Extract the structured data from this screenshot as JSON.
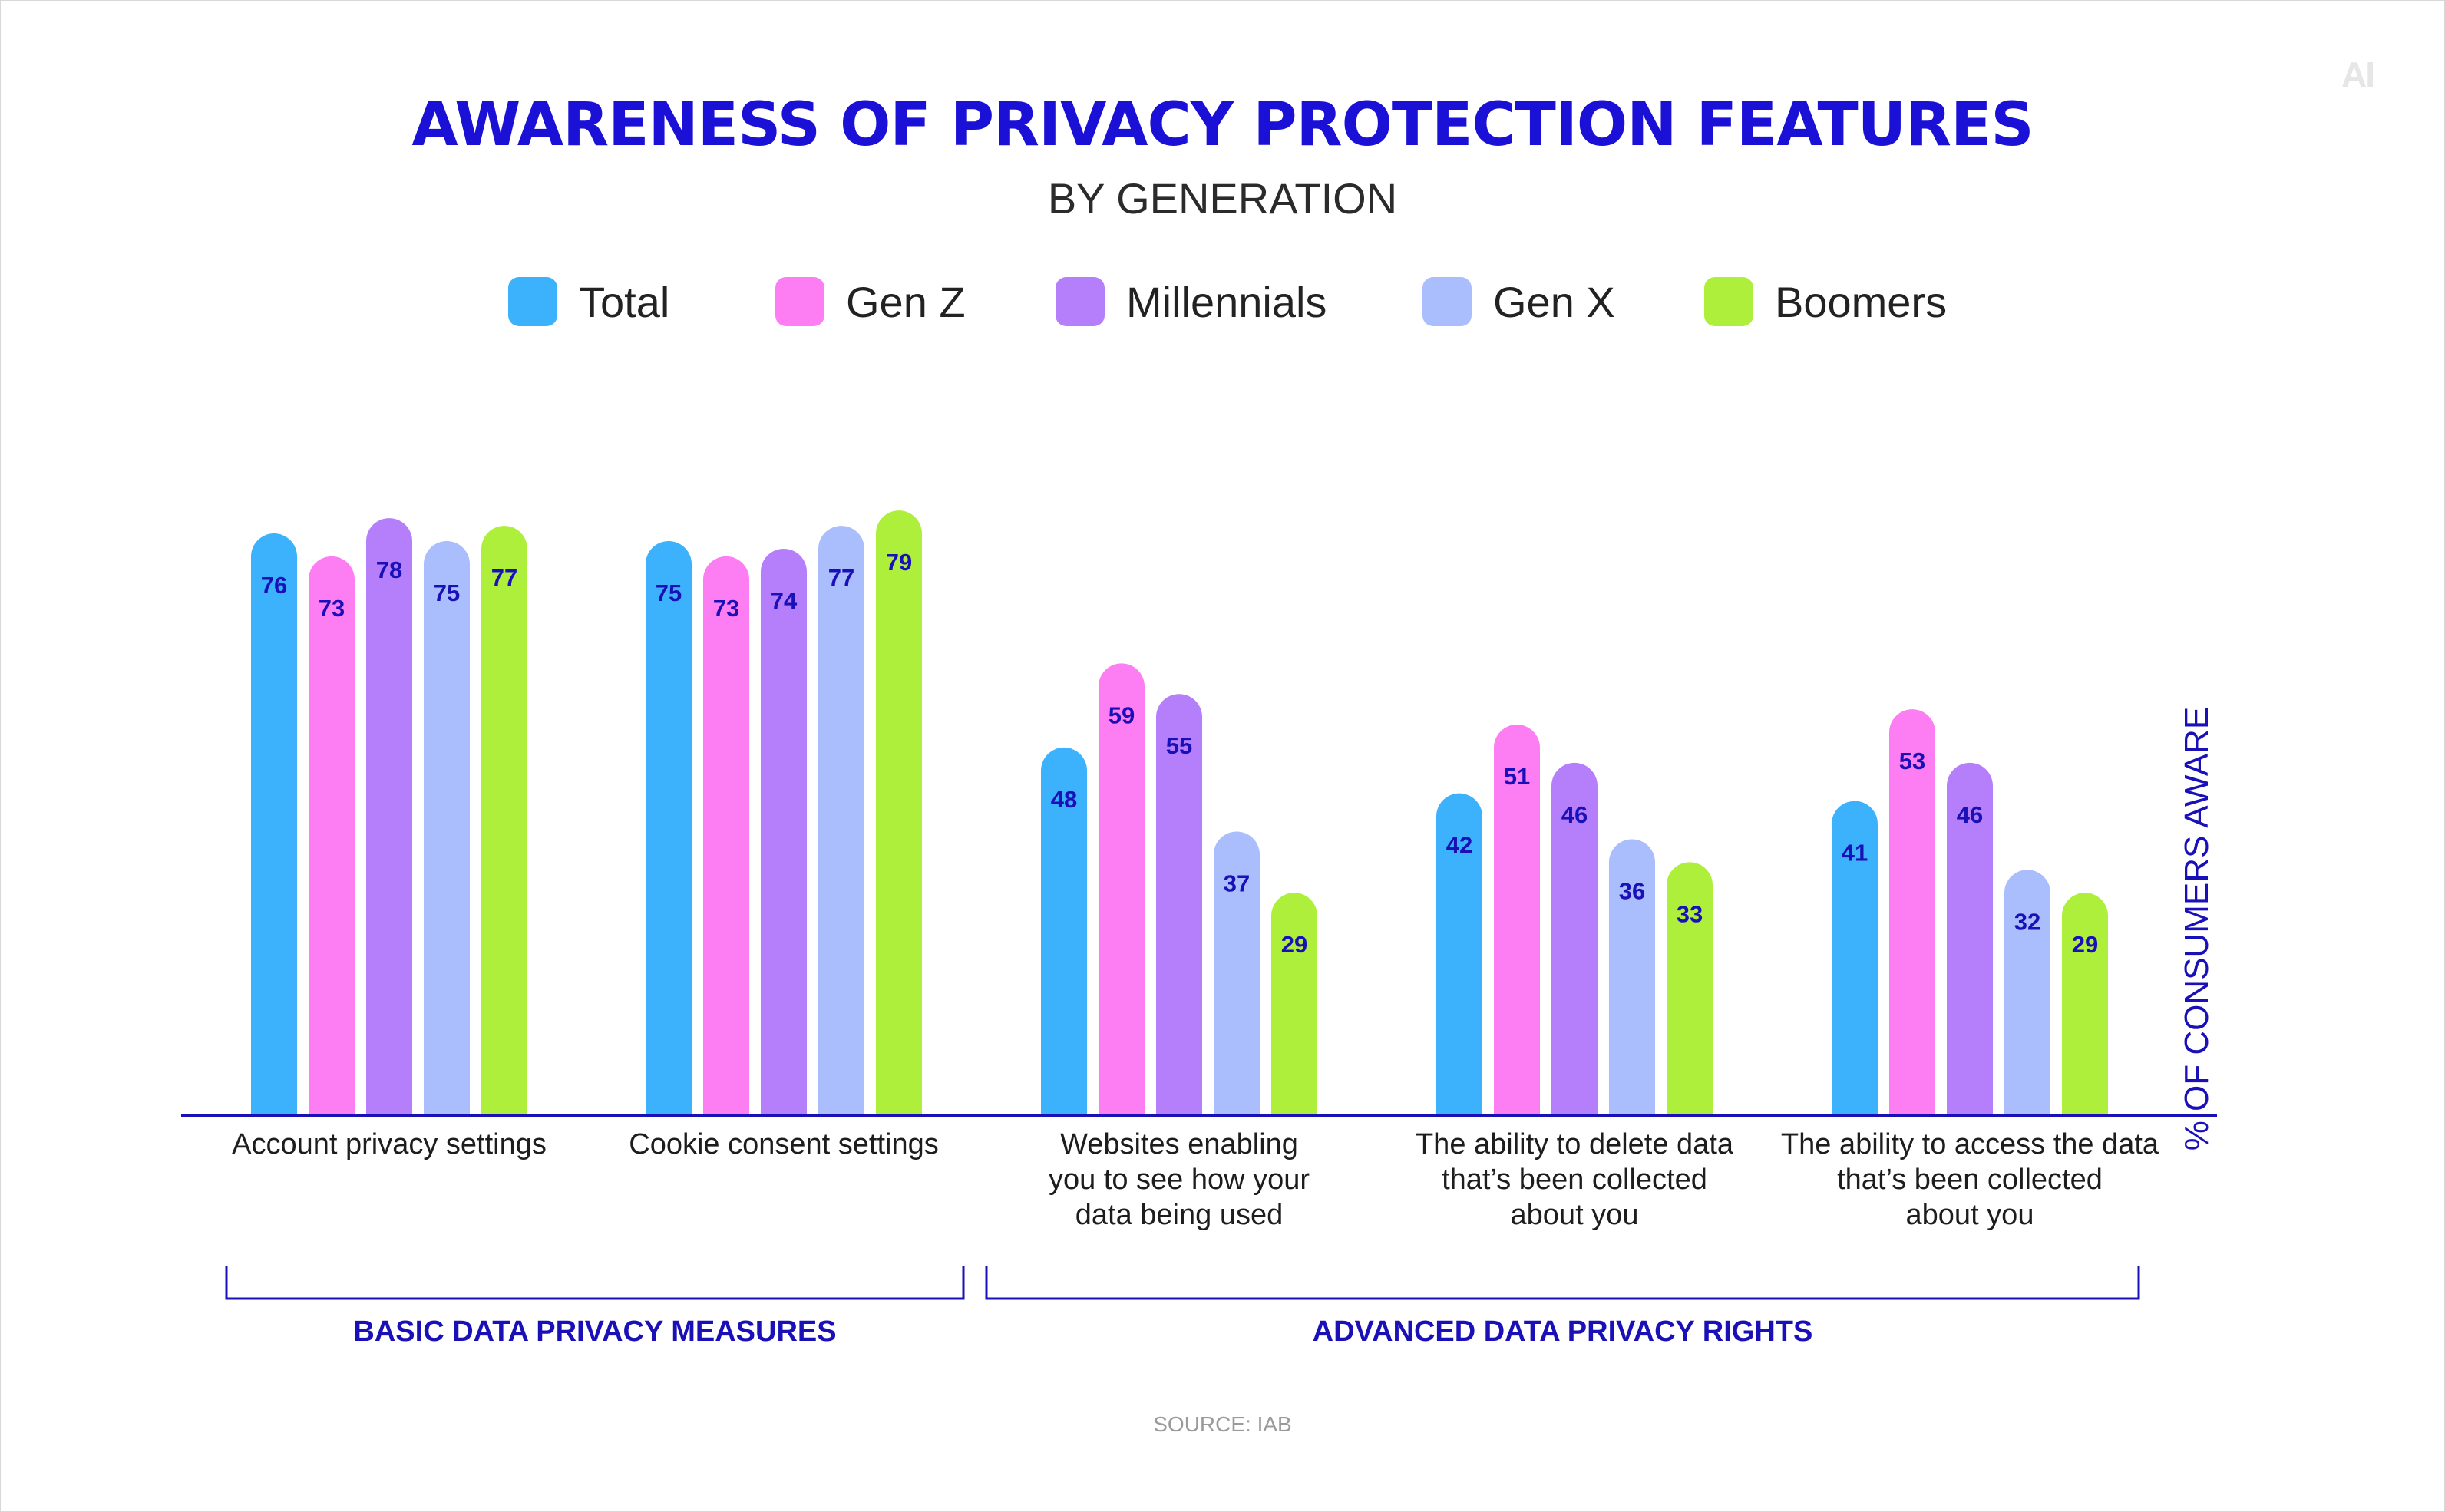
{
  "brand": {
    "logo_text": "AI"
  },
  "header": {
    "title": "AWARENESS OF PRIVACY PROTECTION FEATURES",
    "subtitle": "BY GENERATION"
  },
  "footer": {
    "source": "SOURCE: IAB"
  },
  "colors": {
    "Total": "#3bb2fb",
    "Gen Z": "#fd7ef2",
    "Millennials": "#b57ffc",
    "Gen X": "#aabdfc",
    "Boomers": "#aeef3b",
    "accent": "#1a10b8"
  },
  "chart_data": {
    "type": "bar",
    "title": "AWARENESS OF PRIVACY PROTECTION FEATURES",
    "subtitle": "BY GENERATION",
    "xlabel": "",
    "ylabel": "% OF CONSUMERS AWARE",
    "ylim": [
      0,
      100
    ],
    "grid": false,
    "legend_position": "top-center",
    "categories": [
      "Account privacy settings",
      "Cookie consent settings",
      "Websites enabling you to see how your data being used",
      "The ability to delete data that’s been collected about you",
      "The ability to access the data that’s been collected about you"
    ],
    "category_label_lines": [
      [
        "Account privacy settings"
      ],
      [
        "Cookie consent settings"
      ],
      [
        "Websites enabling",
        "you to see how your",
        "data being used"
      ],
      [
        "The ability to delete data",
        "that’s been collected",
        "about you"
      ],
      [
        "The ability to access the data",
        "that’s been collected",
        "about you"
      ]
    ],
    "groups": [
      {
        "label": "BASIC DATA PRIVACY MEASURES",
        "categories": [
          0,
          1
        ]
      },
      {
        "label": "ADVANCED DATA PRIVACY RIGHTS",
        "categories": [
          2,
          3,
          4
        ]
      }
    ],
    "series": [
      {
        "name": "Total",
        "values": [
          76,
          75,
          48,
          42,
          41
        ]
      },
      {
        "name": "Gen Z",
        "values": [
          73,
          73,
          59,
          51,
          53
        ]
      },
      {
        "name": "Millennials",
        "values": [
          78,
          74,
          55,
          46,
          46
        ]
      },
      {
        "name": "Gen X",
        "values": [
          75,
          77,
          37,
          36,
          32
        ]
      },
      {
        "name": "Boomers",
        "values": [
          77,
          79,
          29,
          33,
          29
        ]
      }
    ]
  }
}
